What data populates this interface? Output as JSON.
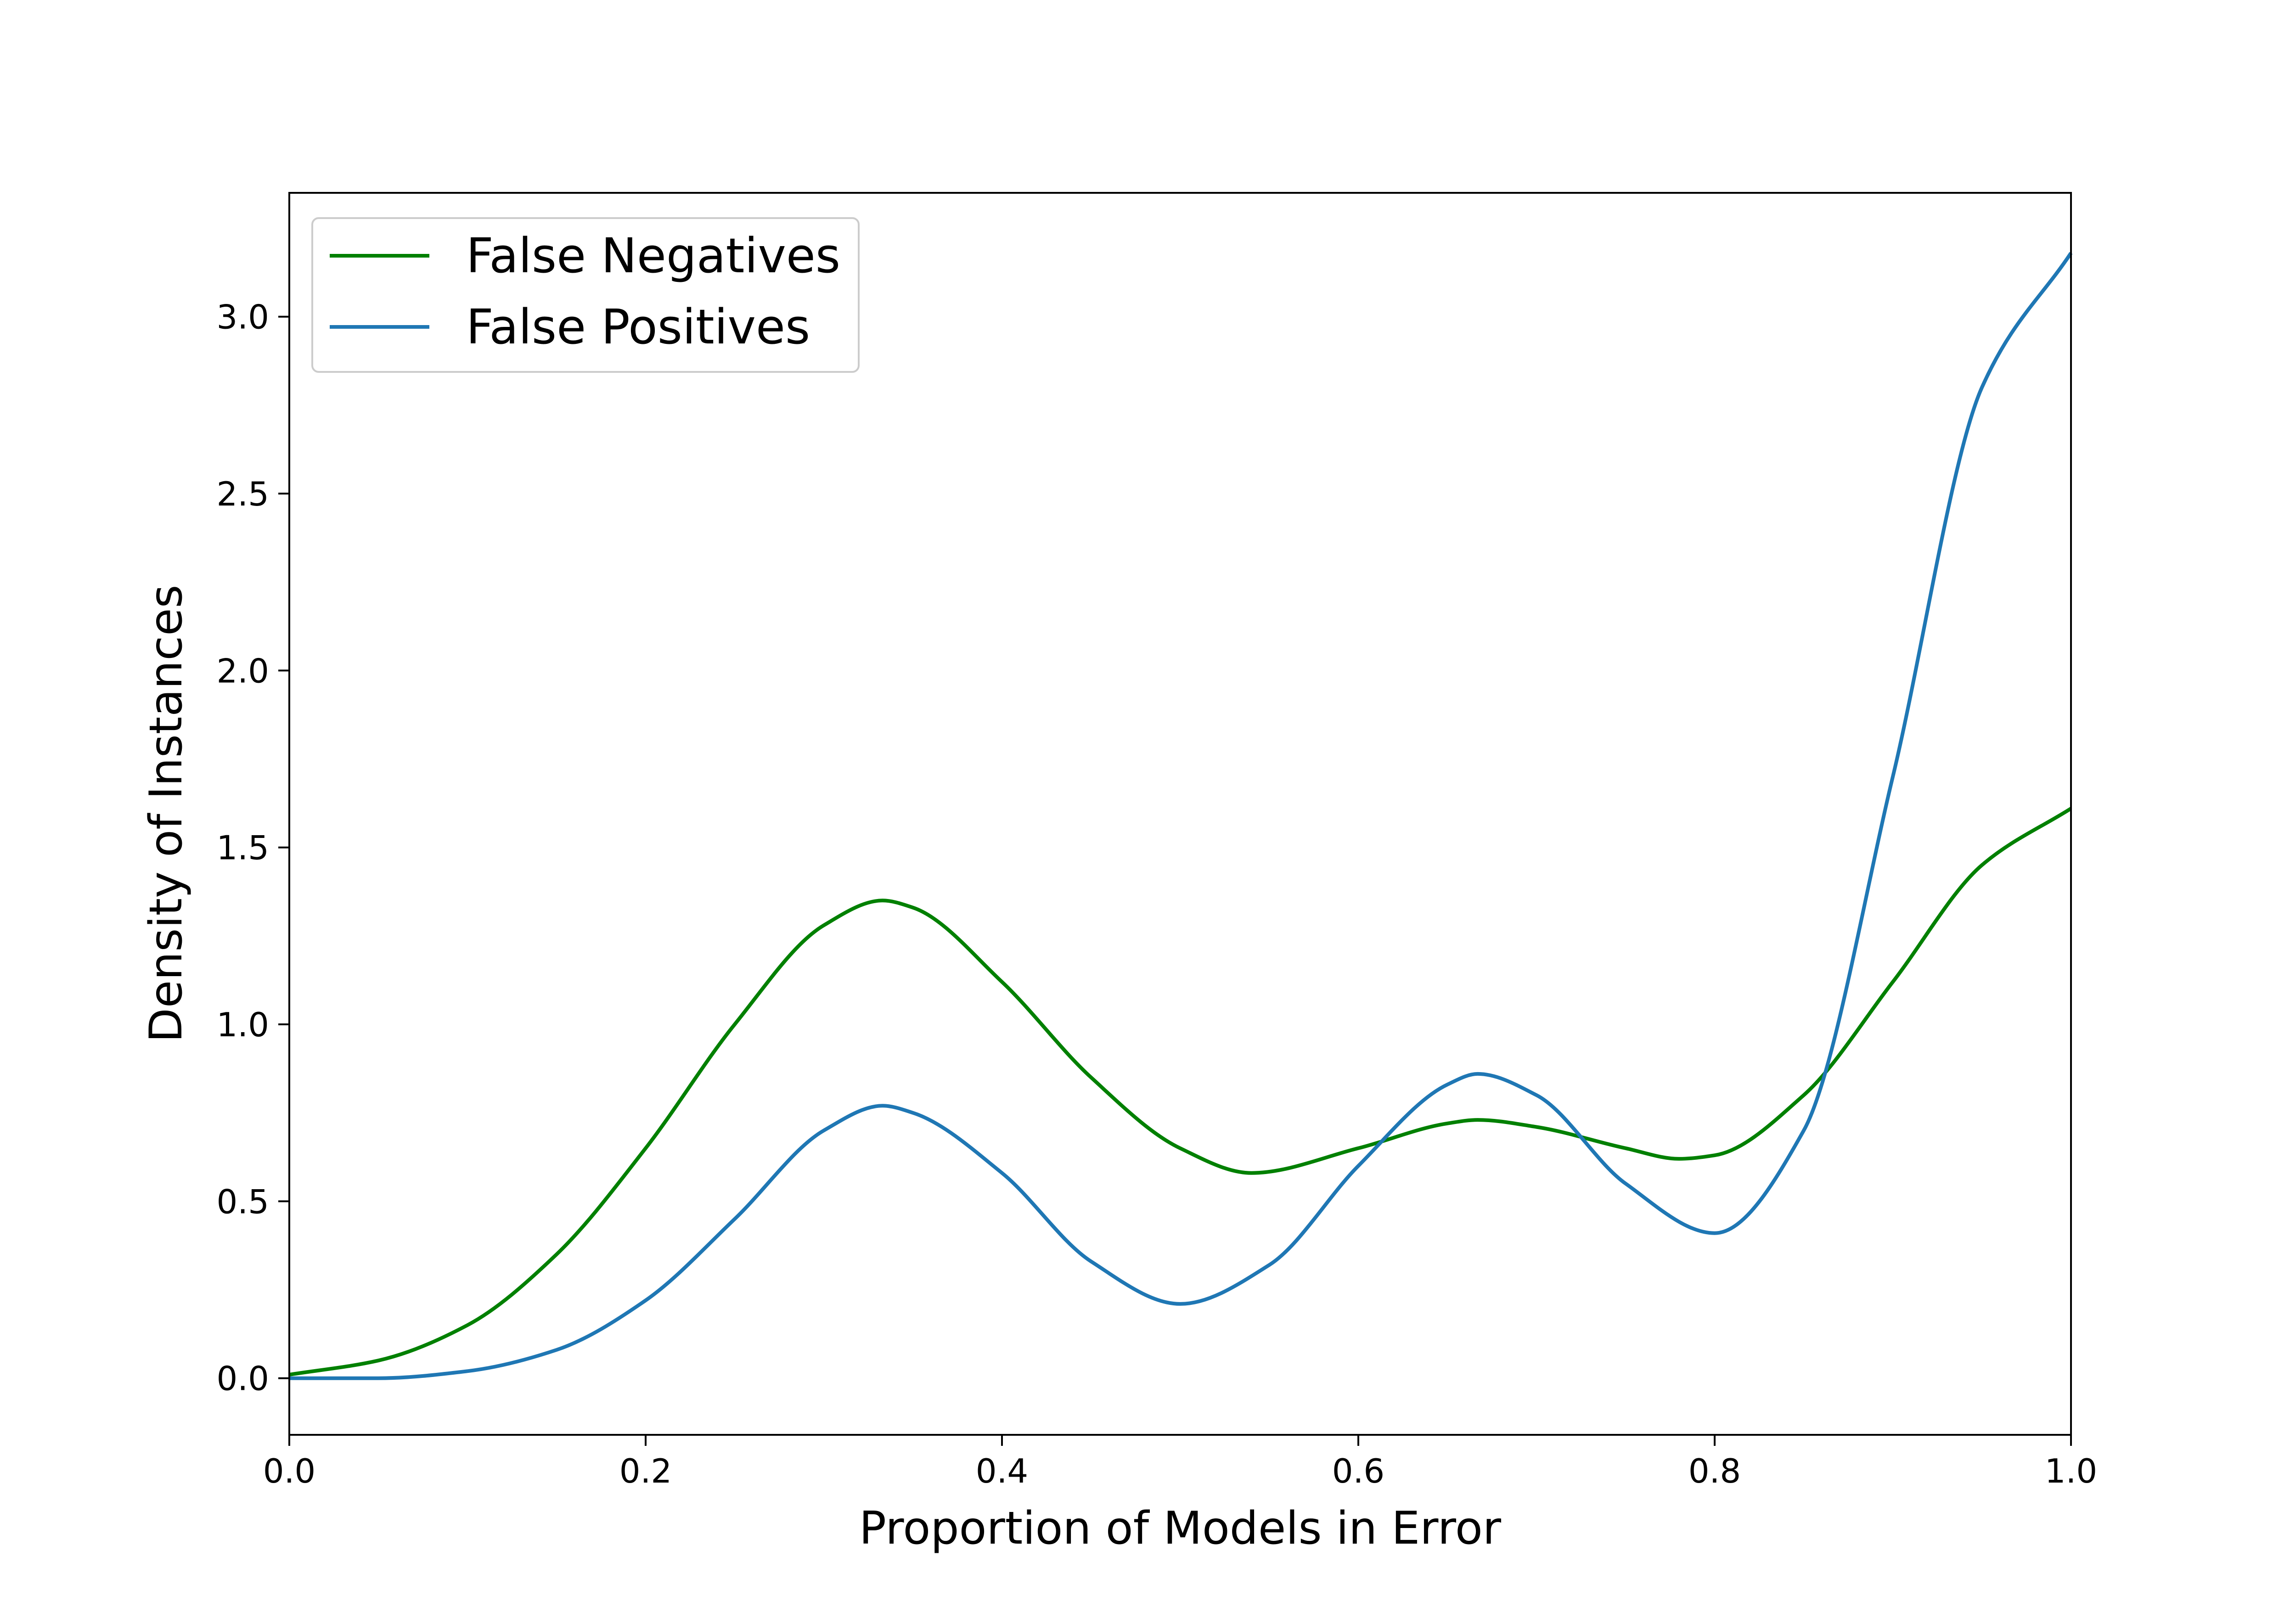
{
  "chart_data": {
    "type": "line",
    "title": "",
    "xlabel": "Proportion of Models in Error",
    "ylabel": "Density of Instances",
    "xlim": [
      0.0,
      1.0
    ],
    "ylim": [
      -0.16,
      3.35
    ],
    "xticks": [
      0.0,
      0.2,
      0.4,
      0.6,
      0.8,
      1.0
    ],
    "xtick_labels": [
      "0.0",
      "0.2",
      "0.4",
      "0.6",
      "0.8",
      "1.0"
    ],
    "yticks": [
      0.0,
      0.5,
      1.0,
      1.5,
      2.0,
      2.5,
      3.0
    ],
    "ytick_labels": [
      "0.0",
      "0.5",
      "1.0",
      "1.5",
      "2.0",
      "2.5",
      "3.0"
    ],
    "grid": false,
    "legend_position": "upper left",
    "series": [
      {
        "name": "False Negatives",
        "color": "#008000",
        "x": [
          0.0,
          0.05,
          0.1,
          0.15,
          0.2,
          0.25,
          0.3,
          0.333,
          0.35,
          0.4,
          0.45,
          0.5,
          0.54,
          0.6,
          0.65,
          0.667,
          0.7,
          0.75,
          0.78,
          0.8,
          0.85,
          0.9,
          0.95,
          1.0
        ],
        "y": [
          0.01,
          0.05,
          0.15,
          0.35,
          0.65,
          1.0,
          1.28,
          1.35,
          1.33,
          1.12,
          0.85,
          0.65,
          0.58,
          0.65,
          0.72,
          0.73,
          0.71,
          0.65,
          0.62,
          0.63,
          0.8,
          1.12,
          1.45,
          1.61
        ]
      },
      {
        "name": "False Positives",
        "color": "#1f77b4",
        "x": [
          0.0,
          0.05,
          0.1,
          0.15,
          0.2,
          0.25,
          0.3,
          0.333,
          0.35,
          0.4,
          0.45,
          0.5,
          0.55,
          0.6,
          0.65,
          0.667,
          0.7,
          0.75,
          0.8,
          0.85,
          0.9,
          0.95,
          1.0
        ],
        "y": [
          0.0,
          0.0,
          0.02,
          0.08,
          0.22,
          0.45,
          0.7,
          0.77,
          0.75,
          0.58,
          0.33,
          0.21,
          0.32,
          0.6,
          0.83,
          0.86,
          0.8,
          0.55,
          0.41,
          0.7,
          1.7,
          2.8,
          3.18
        ]
      }
    ]
  }
}
